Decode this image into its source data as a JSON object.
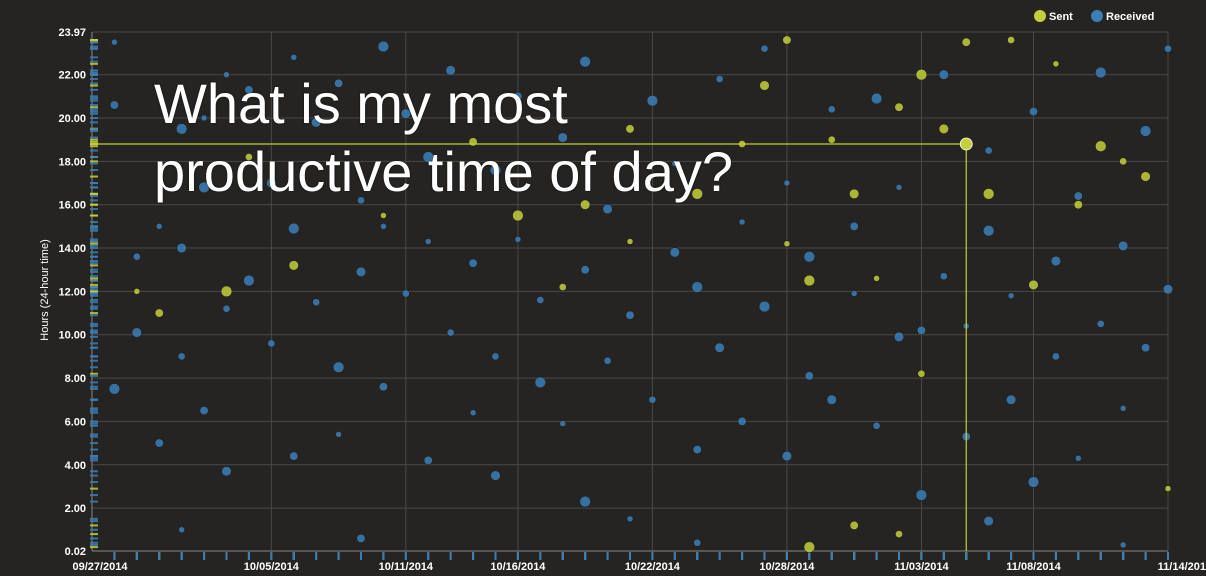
{
  "overlay": {
    "title_line1": "What is my most",
    "title_line2": "productive time of day?"
  },
  "chart_data": {
    "type": "scatter",
    "title": "",
    "xlabel": "",
    "ylabel": "Hours (24-hour time)",
    "ylim": [
      0.02,
      23.97
    ],
    "xlim": [
      "09/27/2014",
      "11/14/2014"
    ],
    "y_ticks": [
      "0.02",
      "2.00",
      "4.00",
      "6.00",
      "8.00",
      "10.00",
      "12.00",
      "14.00",
      "16.00",
      "18.00",
      "20.00",
      "22.00",
      "23.97"
    ],
    "x_ticks": [
      "09/27/2014",
      "10/05/2014",
      "10/11/2014",
      "10/16/2014",
      "10/22/2014",
      "10/28/2014",
      "11/03/2014",
      "11/08/2014",
      "11/14/201"
    ],
    "grid": true,
    "legend_position": "top-right",
    "highlight": {
      "x": "11/05/2014",
      "y": 18.8
    },
    "colors": {
      "sent": "#c4cf3a",
      "received": "#3b7fb8",
      "background": "#252422",
      "grid": "#4a4946"
    },
    "series": [
      {
        "name": "Sent",
        "points": [
          [
            "09/29/2014",
            12.0
          ],
          [
            "09/30/2014",
            11.0
          ],
          [
            "10/03/2014",
            12.0
          ],
          [
            "10/04/2014",
            18.2
          ],
          [
            "10/06/2014",
            13.2
          ],
          [
            "10/10/2014",
            15.5
          ],
          [
            "10/14/2014",
            18.9
          ],
          [
            "10/16/2014",
            15.5
          ],
          [
            "10/18/2014",
            12.2
          ],
          [
            "10/19/2014",
            16.0
          ],
          [
            "10/21/2014",
            14.3
          ],
          [
            "10/21/2014",
            19.5
          ],
          [
            "10/24/2014",
            16.5
          ],
          [
            "10/26/2014",
            18.8
          ],
          [
            "10/27/2014",
            21.5
          ],
          [
            "10/28/2014",
            14.2
          ],
          [
            "10/28/2014",
            23.6
          ],
          [
            "10/29/2014",
            12.5
          ],
          [
            "10/30/2014",
            19.0
          ],
          [
            "10/31/2014",
            16.5
          ],
          [
            "11/01/2014",
            12.6
          ],
          [
            "11/02/2014",
            20.5
          ],
          [
            "11/03/2014",
            22.0
          ],
          [
            "11/03/2014",
            8.2
          ],
          [
            "11/04/2014",
            19.5
          ],
          [
            "11/05/2014",
            18.8
          ],
          [
            "11/05/2014",
            23.5
          ],
          [
            "11/06/2014",
            16.5
          ],
          [
            "11/07/2014",
            23.6
          ],
          [
            "11/08/2014",
            12.3
          ],
          [
            "11/09/2014",
            22.5
          ],
          [
            "11/10/2014",
            16.0
          ],
          [
            "11/11/2014",
            18.7
          ],
          [
            "11/12/2014",
            18.0
          ],
          [
            "11/13/2014",
            17.3
          ],
          [
            "11/14/2014",
            2.9
          ],
          [
            "10/31/2014",
            1.2
          ],
          [
            "10/29/2014",
            0.2
          ],
          [
            "11/02/2014",
            0.8
          ]
        ]
      },
      {
        "name": "Received",
        "points": [
          [
            "09/28/2014",
            23.5
          ],
          [
            "09/28/2014",
            20.6
          ],
          [
            "09/28/2014",
            7.5
          ],
          [
            "09/29/2014",
            13.6
          ],
          [
            "09/29/2014",
            10.1
          ],
          [
            "09/30/2014",
            15.0
          ],
          [
            "09/30/2014",
            5.0
          ],
          [
            "10/01/2014",
            19.5
          ],
          [
            "10/01/2014",
            9.0
          ],
          [
            "10/01/2014",
            14.0
          ],
          [
            "10/02/2014",
            20.0
          ],
          [
            "10/02/2014",
            6.5
          ],
          [
            "10/02/2014",
            16.8
          ],
          [
            "10/03/2014",
            11.2
          ],
          [
            "10/03/2014",
            3.7
          ],
          [
            "10/03/2014",
            22.0
          ],
          [
            "10/04/2014",
            21.3
          ],
          [
            "10/04/2014",
            12.5
          ],
          [
            "10/05/2014",
            9.6
          ],
          [
            "10/05/2014",
            17.0
          ],
          [
            "10/06/2014",
            22.8
          ],
          [
            "10/06/2014",
            4.4
          ],
          [
            "10/06/2014",
            14.9
          ],
          [
            "10/07/2014",
            11.5
          ],
          [
            "10/07/2014",
            19.8
          ],
          [
            "10/08/2014",
            5.4
          ],
          [
            "10/08/2014",
            21.6
          ],
          [
            "10/08/2014",
            8.5
          ],
          [
            "10/09/2014",
            16.2
          ],
          [
            "10/09/2014",
            12.9
          ],
          [
            "10/10/2014",
            15.0
          ],
          [
            "10/10/2014",
            7.6
          ],
          [
            "10/10/2014",
            23.3
          ],
          [
            "10/11/2014",
            11.9
          ],
          [
            "10/11/2014",
            20.2
          ],
          [
            "10/12/2014",
            14.3
          ],
          [
            "10/12/2014",
            4.2
          ],
          [
            "10/12/2014",
            18.2
          ],
          [
            "10/13/2014",
            10.1
          ],
          [
            "10/13/2014",
            22.2
          ],
          [
            "10/14/2014",
            6.4
          ],
          [
            "10/14/2014",
            13.3
          ],
          [
            "10/15/2014",
            17.6
          ],
          [
            "10/15/2014",
            9.0
          ],
          [
            "10/15/2014",
            3.5
          ],
          [
            "10/16/2014",
            14.4
          ],
          [
            "10/16/2014",
            21.0
          ],
          [
            "10/17/2014",
            7.8
          ],
          [
            "10/17/2014",
            11.6
          ],
          [
            "10/18/2014",
            19.1
          ],
          [
            "10/18/2014",
            5.9
          ],
          [
            "10/19/2014",
            13.0
          ],
          [
            "10/19/2014",
            22.6
          ],
          [
            "10/20/2014",
            8.8
          ],
          [
            "10/20/2014",
            15.8
          ],
          [
            "10/21/2014",
            1.5
          ],
          [
            "10/21/2014",
            10.9
          ],
          [
            "10/22/2014",
            20.8
          ],
          [
            "10/22/2014",
            7.0
          ],
          [
            "10/23/2014",
            13.8
          ],
          [
            "10/23/2014",
            17.9
          ],
          [
            "10/24/2014",
            4.7
          ],
          [
            "10/24/2014",
            12.2
          ],
          [
            "10/25/2014",
            21.8
          ],
          [
            "10/25/2014",
            9.4
          ],
          [
            "10/26/2014",
            15.2
          ],
          [
            "10/26/2014",
            6.0
          ],
          [
            "10/27/2014",
            11.3
          ],
          [
            "10/27/2014",
            23.2
          ],
          [
            "10/28/2014",
            4.4
          ],
          [
            "10/28/2014",
            17.0
          ],
          [
            "10/29/2014",
            8.1
          ],
          [
            "10/29/2014",
            13.6
          ],
          [
            "10/30/2014",
            20.4
          ],
          [
            "10/30/2014",
            7.0
          ],
          [
            "10/31/2014",
            11.9
          ],
          [
            "10/31/2014",
            15.0
          ],
          [
            "11/01/2014",
            20.9
          ],
          [
            "11/01/2014",
            5.8
          ],
          [
            "11/02/2014",
            9.9
          ],
          [
            "11/02/2014",
            16.8
          ],
          [
            "11/03/2014",
            10.2
          ],
          [
            "11/03/2014",
            2.6
          ],
          [
            "11/04/2014",
            12.7
          ],
          [
            "11/04/2014",
            22.0
          ],
          [
            "11/05/2014",
            10.4
          ],
          [
            "11/05/2014",
            5.3
          ],
          [
            "11/06/2014",
            14.8
          ],
          [
            "11/06/2014",
            18.5
          ],
          [
            "11/07/2014",
            7.0
          ],
          [
            "11/07/2014",
            11.8
          ],
          [
            "11/08/2014",
            20.3
          ],
          [
            "11/08/2014",
            3.2
          ],
          [
            "11/09/2014",
            9.0
          ],
          [
            "11/09/2014",
            13.4
          ],
          [
            "11/10/2014",
            4.3
          ],
          [
            "11/10/2014",
            16.4
          ],
          [
            "11/11/2014",
            22.1
          ],
          [
            "11/11/2014",
            10.5
          ],
          [
            "11/12/2014",
            14.1
          ],
          [
            "11/12/2014",
            6.6
          ],
          [
            "11/13/2014",
            9.4
          ],
          [
            "11/13/2014",
            19.4
          ],
          [
            "11/14/2014",
            23.2
          ],
          [
            "11/14/2014",
            12.1
          ],
          [
            "10/01/2014",
            1.0
          ],
          [
            "10/09/2014",
            0.6
          ],
          [
            "10/19/2014",
            2.3
          ],
          [
            "10/24/2014",
            0.4
          ],
          [
            "11/06/2014",
            1.4
          ],
          [
            "11/12/2014",
            0.3
          ]
        ]
      }
    ]
  }
}
